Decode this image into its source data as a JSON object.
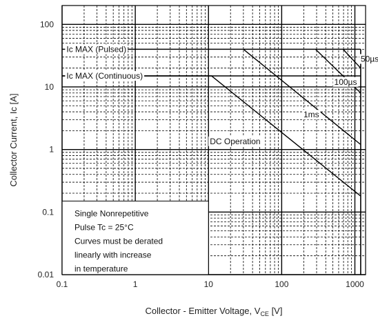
{
  "chart_data": {
    "type": "line",
    "title": "",
    "xlabel": "Collector - Emitter Voltage, V",
    "xlabel_sub": "CE",
    "xlabel_unit": " [V]",
    "ylabel": "Collector Current, Ic [A]",
    "xscale": "log",
    "yscale": "log",
    "xlim": [
      0.1,
      1400
    ],
    "ylim": [
      0.01,
      200
    ],
    "grid": true,
    "x_ticks": [
      {
        "value": 0.1,
        "label": "0.1"
      },
      {
        "value": 1,
        "label": "1"
      },
      {
        "value": 10,
        "label": "10"
      },
      {
        "value": 100,
        "label": "100"
      },
      {
        "value": 1000,
        "label": "1000"
      }
    ],
    "y_ticks": [
      {
        "value": 0.01,
        "label": "0.01"
      },
      {
        "value": 0.1,
        "label": "0.1"
      },
      {
        "value": 1,
        "label": "1"
      },
      {
        "value": 10,
        "label": "10"
      },
      {
        "value": 100,
        "label": "100"
      }
    ],
    "series": [
      {
        "name": "DC Operation",
        "points": [
          [
            0.1,
            15
          ],
          [
            11,
            15
          ],
          [
            1200,
            0.18
          ]
        ]
      },
      {
        "name": "1ms",
        "points": [
          [
            30,
            40
          ],
          [
            1200,
            1.2
          ]
        ]
      },
      {
        "name": "100µs",
        "points": [
          [
            290,
            40
          ],
          [
            1200,
            8
          ]
        ]
      },
      {
        "name": "50µs",
        "points": [
          [
            690,
            40
          ],
          [
            1200,
            20
          ]
        ]
      }
    ],
    "limit_lines": [
      {
        "label": "Ic MAX (Pulsed)",
        "value": 40
      },
      {
        "label": "Ic MAX (Continuous)",
        "value": 15
      }
    ],
    "vmax": {
      "value": 1200,
      "ymax": 40
    },
    "annotations": [
      {
        "text": "Ic MAX (Pulsed)",
        "x": 0.11,
        "y": 40
      },
      {
        "text": "Ic MAX (Continuous)",
        "x": 0.11,
        "y": 15
      },
      {
        "text": "50µs",
        "x": 1150,
        "y": 28
      },
      {
        "text": "100µs",
        "x": 500,
        "y": 12
      },
      {
        "text": "1ms",
        "x": 190,
        "y": 3.6
      },
      {
        "text": "DC Operation",
        "x": 10,
        "y": 1.35
      }
    ],
    "notes": [
      "Single Nonrepetitive",
      "Pulse Tc = 25°C",
      "Curves must be derated",
      "linearly with increase",
      "in temperature"
    ]
  }
}
